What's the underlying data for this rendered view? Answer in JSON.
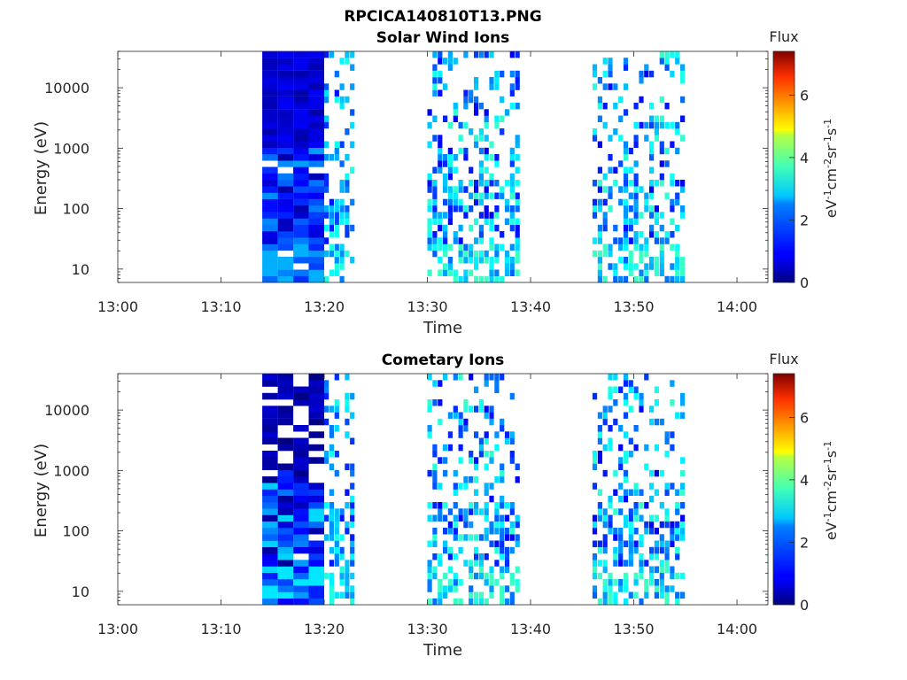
{
  "figure_title": "RPCICA140810T13.PNG",
  "colorbar": {
    "label": "Flux",
    "units_label": "eV-1cm-2sr-1s-1",
    "ticks": [
      "0",
      "2",
      "4",
      "6"
    ],
    "range": [
      0,
      7.4
    ],
    "colormap": "jet"
  },
  "chart_data": [
    {
      "type": "heatmap",
      "title": "Solar Wind Ions",
      "xlabel": "Time",
      "ylabel": "Energy (eV)",
      "yscale": "log",
      "ylim": [
        6,
        40000
      ],
      "xlim": [
        "13:00",
        "14:03"
      ],
      "x_ticks": [
        "13:00",
        "13:10",
        "13:20",
        "13:30",
        "13:40",
        "13:50",
        "14:00"
      ],
      "y_ticks": [
        "10",
        "100",
        "1000",
        "10000"
      ],
      "data_segments": [
        {
          "start": "13:14",
          "end": "13:20",
          "flux_approx": [
            0.3,
            2.2
          ],
          "note_levels": "dense"
        },
        {
          "start": "13:20",
          "end": "13:23",
          "flux_approx": [
            1.0,
            3.0
          ],
          "note_levels": "sparse"
        },
        {
          "start": "13:30",
          "end": "13:39",
          "flux_approx": [
            0.8,
            3.2
          ],
          "note_levels": "sparse"
        },
        {
          "start": "13:46",
          "end": "13:55",
          "flux_approx": [
            0.8,
            3.2
          ],
          "note_levels": "sparse"
        }
      ]
    },
    {
      "type": "heatmap",
      "title": "Cometary Ions",
      "xlabel": "Time",
      "ylabel": "Energy (eV)",
      "yscale": "log",
      "ylim": [
        6,
        40000
      ],
      "xlim": [
        "13:00",
        "14:03"
      ],
      "x_ticks": [
        "13:00",
        "13:10",
        "13:20",
        "13:30",
        "13:40",
        "13:50",
        "14:00"
      ],
      "y_ticks": [
        "10",
        "100",
        "1000",
        "10000"
      ],
      "data_segments": [
        {
          "start": "13:14",
          "end": "13:20",
          "flux_approx": [
            0.0,
            2.6
          ],
          "note_levels": "dense"
        },
        {
          "start": "13:20",
          "end": "13:23",
          "flux_approx": [
            1.0,
            3.0
          ],
          "note_levels": "sparse"
        },
        {
          "start": "13:30",
          "end": "13:39",
          "flux_approx": [
            0.8,
            3.2
          ],
          "note_levels": "sparse"
        },
        {
          "start": "13:46",
          "end": "13:55",
          "flux_approx": [
            0.8,
            3.2
          ],
          "note_levels": "sparse"
        }
      ]
    }
  ]
}
